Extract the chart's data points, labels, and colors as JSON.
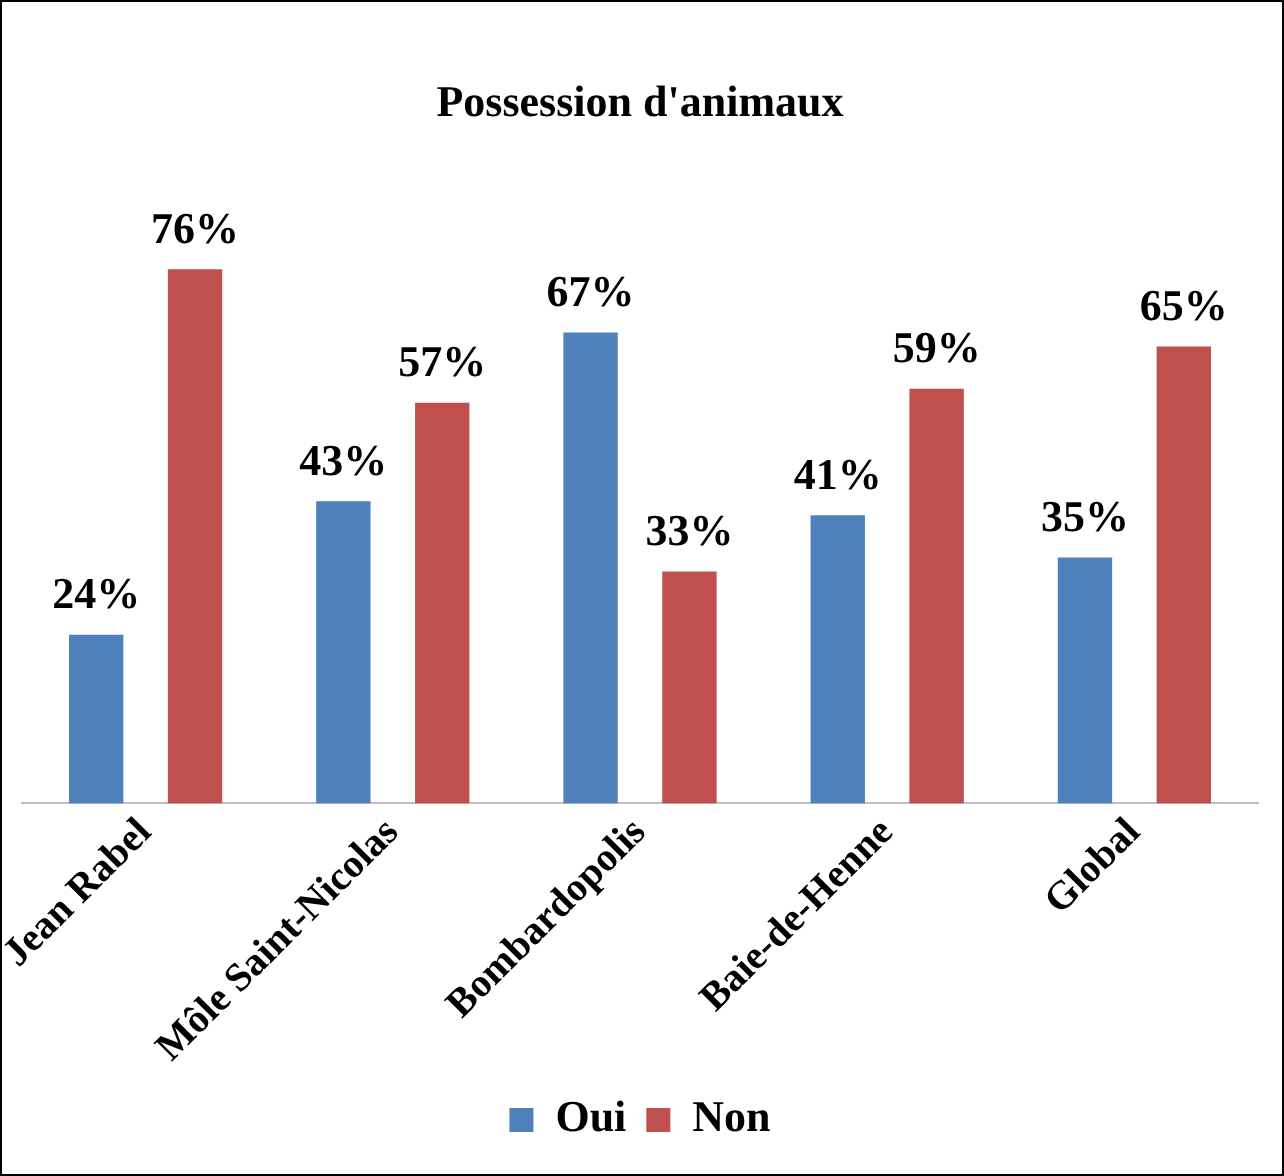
{
  "chart_data": {
    "type": "bar",
    "title": "Possession d'animaux",
    "categories": [
      "Jean Rabel",
      "Môle Saint-Nicolas",
      "Bombardopolis",
      "Baie-de-Henne",
      "Global"
    ],
    "series": [
      {
        "name": "Oui",
        "color": "#4f81bd",
        "values": [
          24,
          43,
          67,
          41,
          35
        ],
        "value_labels": [
          "24%",
          "43%",
          "67%",
          "41%",
          "35%"
        ]
      },
      {
        "name": "Non",
        "color": "#c0504d",
        "values": [
          76,
          57,
          33,
          59,
          65
        ],
        "value_labels": [
          "76%",
          "57%",
          "33%",
          "59%",
          "65%"
        ]
      }
    ],
    "legend": "bottom",
    "grid": false,
    "tick_labels": "x"
  }
}
